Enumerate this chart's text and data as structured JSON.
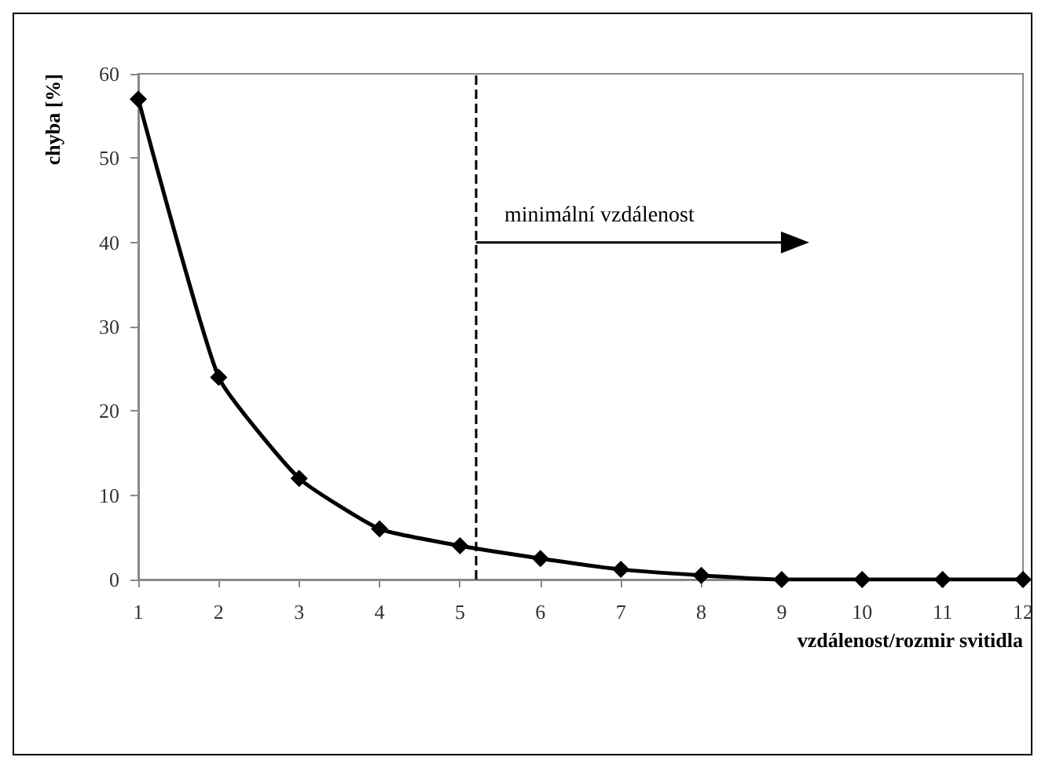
{
  "chart_data": {
    "type": "line",
    "xlabel": "vzdálenost/rozmir svitidla",
    "ylabel": "chyba [%]",
    "x": [
      1,
      2,
      3,
      4,
      5,
      6,
      7,
      8,
      9,
      10,
      11,
      12
    ],
    "series": [
      {
        "color": "#000000",
        "values": [
          57,
          24,
          12,
          6,
          4,
          2.5,
          1.2,
          0.5,
          0,
          0,
          0,
          0
        ]
      }
    ],
    "xlim": [
      1,
      12
    ],
    "xticks": [
      1,
      2,
      3,
      4,
      5,
      6,
      7,
      8,
      9,
      10,
      11,
      12
    ],
    "ylim": [
      0,
      60
    ],
    "yticks": [
      0,
      10,
      20,
      30,
      40,
      50,
      60
    ],
    "grid": false,
    "marker": "diamond",
    "line_style": "solid",
    "ref_lines": [
      {
        "axis": "x",
        "value": 5.2,
        "color": "#000000",
        "line_style": "dashed"
      }
    ],
    "annotations": [
      {
        "text": "minimální vzdálenost",
        "x": 5.2,
        "y": 40
      }
    ]
  }
}
